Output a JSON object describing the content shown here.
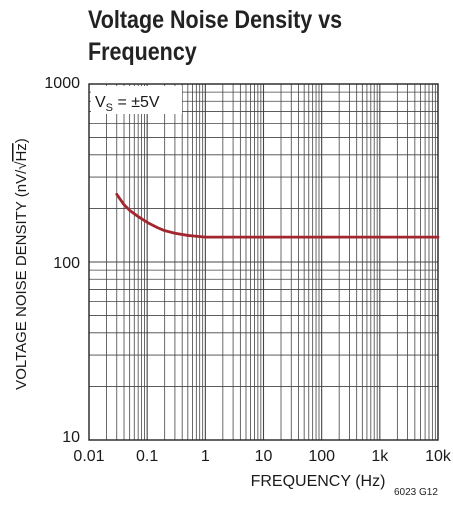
{
  "chart_data": {
    "type": "line",
    "title_lines": [
      "Voltage Noise Density  vs",
      "Frequency"
    ],
    "xlabel": "FREQUENCY (Hz)",
    "ylabel_main": "VOLTAGE NOISE DENSITY (nV/",
    "ylabel_unit": "Hz",
    "ylabel_end": ")",
    "x_scale": "log",
    "y_scale": "log",
    "xlim": [
      0.01,
      10000
    ],
    "ylim": [
      10,
      1000
    ],
    "x_ticks": [
      0.01,
      0.1,
      1,
      10,
      100,
      1000,
      10000
    ],
    "x_tick_labels": [
      "0.01",
      "0.1",
      "1",
      "10",
      "100",
      "1k",
      "10k"
    ],
    "y_ticks": [
      10,
      100,
      1000
    ],
    "y_tick_labels": [
      "10",
      "100",
      "1000"
    ],
    "grid": true,
    "condition": {
      "prefix": "V",
      "sub": "S",
      "suffix": " = ±5V"
    },
    "series": [
      {
        "color": "#a3262e",
        "x": [
          0.03,
          0.04,
          0.05,
          0.07,
          0.1,
          0.15,
          0.2,
          0.3,
          0.5,
          0.7,
          1,
          2,
          10,
          100,
          1000,
          10000
        ],
        "y": [
          240,
          210,
          195,
          180,
          167,
          156,
          150,
          145,
          141,
          139.5,
          138,
          138,
          138,
          138,
          138,
          138
        ]
      }
    ]
  },
  "figure_id": "6023 G12"
}
